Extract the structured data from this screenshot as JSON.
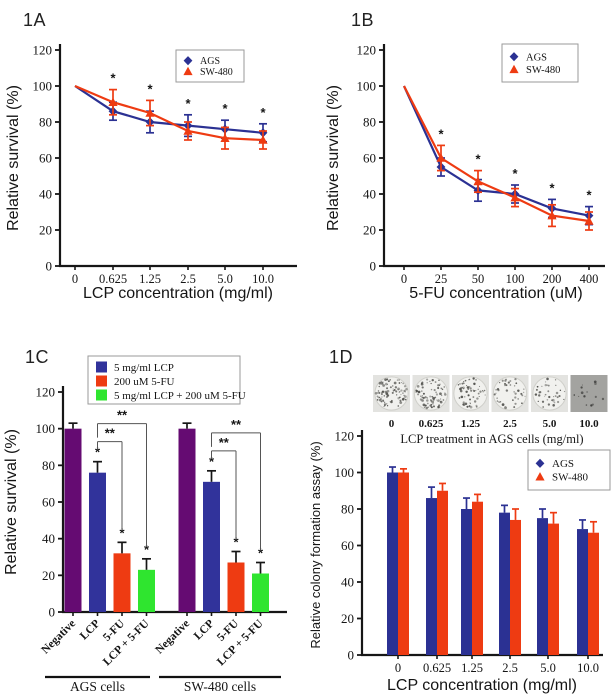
{
  "colors": {
    "ags_blue": "#2b3193",
    "sw480_red": "#ee3b12",
    "negative_purple": "#650b72",
    "combo_green": "#2fe52f"
  },
  "chart_data": [
    {
      "panel": "1A",
      "type": "line",
      "xlabel": "LCP concentration (mg/ml)",
      "ylabel": "Relative survival (%)",
      "categories": [
        "0",
        "0.625",
        "1.25",
        "2.5",
        "5.0",
        "10.0"
      ],
      "ylim": [
        0,
        120
      ],
      "yticks": [
        0,
        20,
        40,
        60,
        80,
        100,
        120
      ],
      "legend_position": "top-right-inside",
      "series": [
        {
          "name": "AGS",
          "color": "#2b3193",
          "marker": "diamond",
          "values": [
            100,
            86,
            80,
            78,
            76,
            74
          ],
          "errors": [
            0,
            5,
            6,
            6,
            5,
            5
          ]
        },
        {
          "name": "SW-480",
          "color": "#ee3b12",
          "marker": "triangle",
          "values": [
            100,
            91,
            85,
            75,
            71,
            70
          ],
          "errors": [
            0,
            7,
            7,
            5,
            6,
            5
          ]
        }
      ],
      "significance": [
        "",
        "*",
        "*",
        "*",
        "*",
        "*"
      ]
    },
    {
      "panel": "1B",
      "type": "line",
      "xlabel": "5-FU concentration (uM)",
      "ylabel": "Relative survival (%)",
      "categories": [
        "0",
        "25",
        "50",
        "100",
        "200",
        "400"
      ],
      "ylim": [
        0,
        120
      ],
      "yticks": [
        0,
        20,
        40,
        60,
        80,
        100,
        120
      ],
      "legend_position": "top-right-inside",
      "series": [
        {
          "name": "AGS",
          "color": "#2b3193",
          "marker": "diamond",
          "values": [
            100,
            55,
            42,
            40,
            32,
            28
          ],
          "errors": [
            0,
            5,
            6,
            5,
            5,
            5
          ]
        },
        {
          "name": "SW-480",
          "color": "#ee3b12",
          "marker": "triangle",
          "values": [
            100,
            60,
            47,
            38,
            28,
            25
          ],
          "errors": [
            0,
            7,
            6,
            5,
            6,
            5
          ]
        }
      ],
      "significance": [
        "",
        "*",
        "*",
        "*",
        "*",
        "*"
      ]
    },
    {
      "panel": "1C",
      "type": "bar-grouped",
      "ylabel": "Relative survival (%)",
      "ylim": [
        0,
        120
      ],
      "yticks": [
        0,
        20,
        40,
        60,
        80,
        100,
        120
      ],
      "categories": [
        "Negative",
        "LCP",
        "5-FU",
        "LCP + 5-FU"
      ],
      "bar_colors": [
        "#650b72",
        "#31339b",
        "#ee3b12",
        "#2fe52f"
      ],
      "legend": [
        {
          "label": "5 mg/ml LCP",
          "color": "#31339b"
        },
        {
          "label": "200 uM 5-FU",
          "color": "#ee3b12"
        },
        {
          "label": "5 mg/ml LCP + 200 uM 5-FU",
          "color": "#2fe52f"
        }
      ],
      "groups": [
        {
          "name": "AGS cells",
          "values": [
            100,
            76,
            32,
            23
          ],
          "errors": [
            3,
            6,
            6,
            6
          ],
          "significance": [
            "",
            "*",
            "*",
            "*"
          ]
        },
        {
          "name": "SW-480 cells",
          "values": [
            100,
            71,
            27,
            21
          ],
          "errors": [
            3,
            6,
            6,
            6
          ],
          "significance": [
            "",
            "*",
            "*",
            "*"
          ]
        }
      ],
      "brackets": [
        {
          "from": 1,
          "to": 2,
          "label": "**"
        },
        {
          "from": 1,
          "to": 3,
          "label": "**"
        }
      ]
    },
    {
      "panel": "1D",
      "type": "bar-paired",
      "xlabel": "LCP concentration (mg/ml)",
      "ylabel": "Relative colony formation assay (%)",
      "categories": [
        "0",
        "0.625",
        "1.25",
        "2.5",
        "5.0",
        "10.0"
      ],
      "ylim": [
        0,
        120
      ],
      "yticks": [
        0,
        20,
        40,
        60,
        80,
        100,
        120
      ],
      "legend_position": "top-right-inside",
      "series": [
        {
          "name": "AGS",
          "color": "#2b3193",
          "marker": "diamond",
          "values": [
            100,
            86,
            80,
            78,
            75,
            69
          ],
          "errors": [
            3,
            6,
            6,
            4,
            5,
            5
          ]
        },
        {
          "name": "SW-480",
          "color": "#ee3b12",
          "marker": "triangle",
          "values": [
            100,
            90,
            84,
            74,
            72,
            67
          ],
          "errors": [
            2,
            4,
            4,
            6,
            6,
            6
          ]
        }
      ],
      "colony_strip": {
        "labels": [
          "0",
          "0.625",
          "1.25",
          "2.5",
          "5.0",
          "10.0"
        ],
        "caption": "LCP treatment in AGS cells (mg/ml)",
        "plate_dot_counts": [
          85,
          72,
          55,
          42,
          36,
          14
        ]
      }
    }
  ]
}
